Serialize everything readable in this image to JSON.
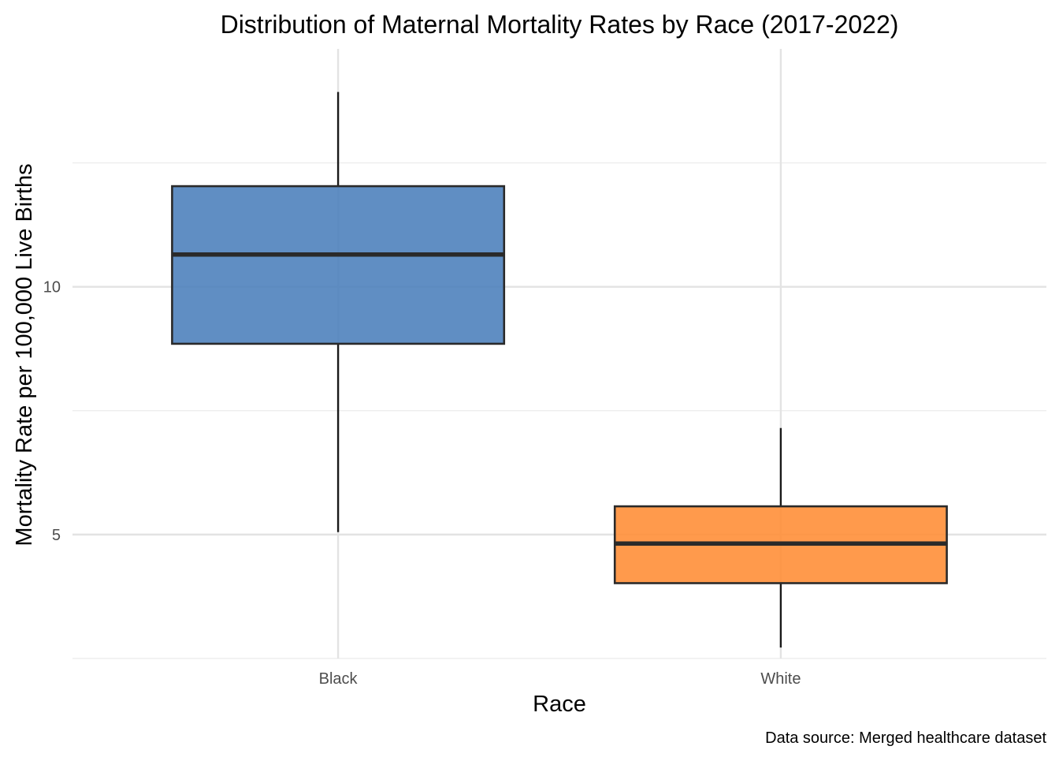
{
  "chart_data": {
    "type": "box",
    "title": "Distribution of Maternal Mortality Rates by Race (2017-2022)",
    "xlabel": "Race",
    "ylabel": "Mortality Rate per 100,000 Live Births",
    "caption": "Data source: Merged healthcare dataset",
    "categories": [
      "Black",
      "White"
    ],
    "yticks": [
      5,
      10
    ],
    "ylim": [
      2.5,
      14.8
    ],
    "grid": true,
    "legend": "none",
    "series": [
      {
        "category": "Black",
        "min": 5.05,
        "q1": 8.85,
        "median": 10.65,
        "q3": 12.03,
        "max": 13.93,
        "color": "#4A7EBB"
      },
      {
        "category": "White",
        "min": 2.72,
        "q1": 4.02,
        "median": 4.82,
        "q3": 5.57,
        "max": 7.15,
        "color": "#FF8C33"
      }
    ]
  }
}
